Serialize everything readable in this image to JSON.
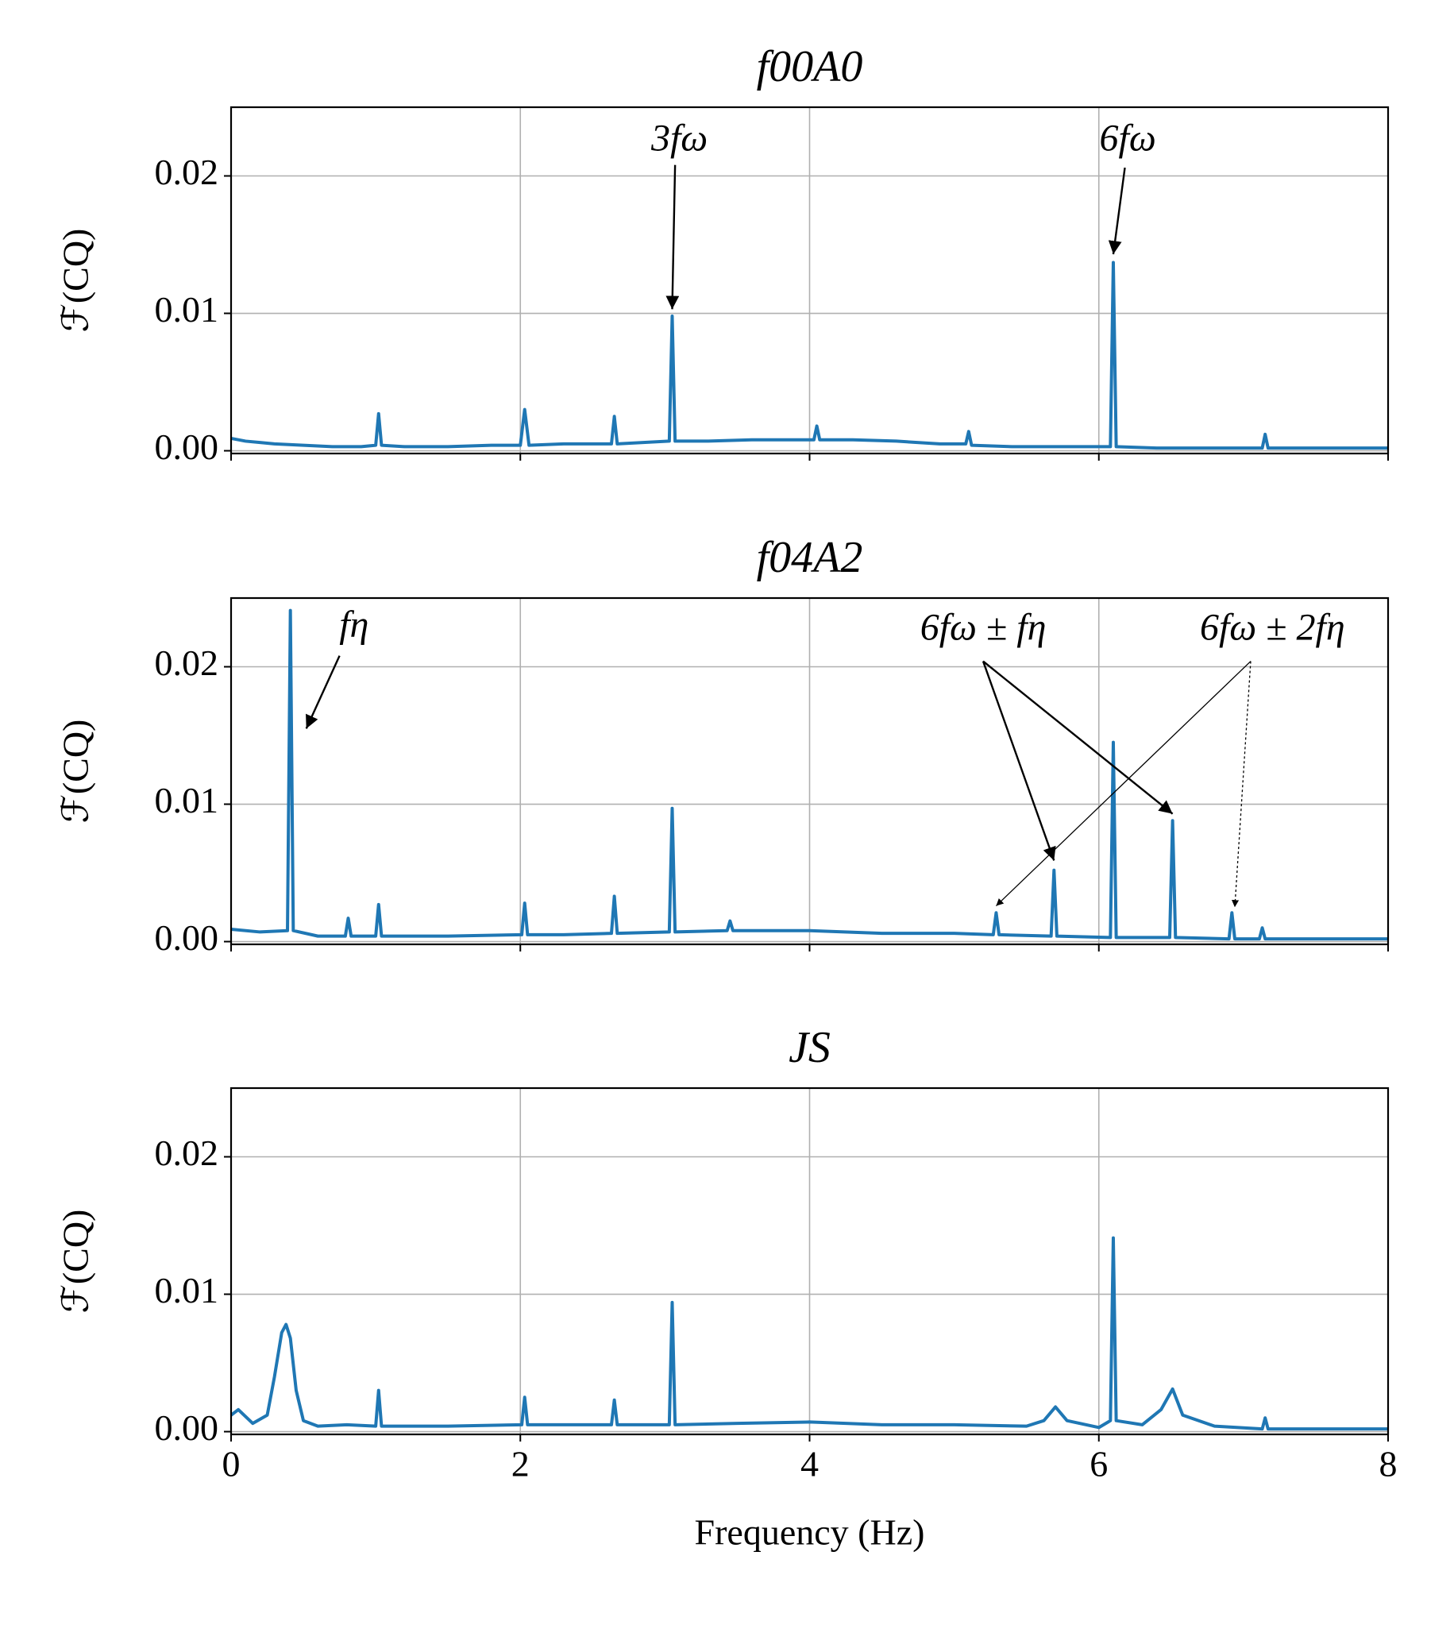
{
  "chart_data": [
    {
      "type": "line",
      "title": "f00A0",
      "ylabel": "ℱ(CQ)",
      "color": "#1f77b4",
      "grid": true,
      "show_xticklabels": false,
      "xlim": [
        0,
        8
      ],
      "xticks": [
        0,
        2,
        4,
        6,
        8
      ],
      "ylim": [
        -0.0002,
        0.025
      ],
      "yticks": [
        {
          "value": 0,
          "label": "0.00"
        },
        0.01,
        0.02
      ],
      "annotations": [
        "3fω",
        "6fω"
      ],
      "x": [
        0,
        0.1,
        0.2,
        0.3,
        0.5,
        0.7,
        0.9,
        1.0,
        1.02,
        1.04,
        1.2,
        1.5,
        1.8,
        2.0,
        2.03,
        2.06,
        2.3,
        2.5,
        2.63,
        2.65,
        2.67,
        2.85,
        3.03,
        3.05,
        3.07,
        3.3,
        3.6,
        3.9,
        4.03,
        4.05,
        4.07,
        4.3,
        4.6,
        4.9,
        5.08,
        5.1,
        5.12,
        5.4,
        5.8,
        6.08,
        6.1,
        6.12,
        6.4,
        6.8,
        7.13,
        7.15,
        7.17,
        7.5,
        8.0
      ],
      "values": [
        0.0009,
        0.0007,
        0.0006,
        0.0005,
        0.0004,
        0.0003,
        0.0003,
        0.0004,
        0.0027,
        0.0004,
        0.0003,
        0.0003,
        0.0004,
        0.0004,
        0.003,
        0.0004,
        0.0005,
        0.0005,
        0.0005,
        0.0025,
        0.0005,
        0.0006,
        0.0007,
        0.0098,
        0.0007,
        0.0007,
        0.0008,
        0.0008,
        0.0008,
        0.0018,
        0.0008,
        0.0008,
        0.0007,
        0.0005,
        0.0005,
        0.0014,
        0.0004,
        0.0003,
        0.0003,
        0.0003,
        0.0137,
        0.0003,
        0.0002,
        0.0002,
        0.0002,
        0.0012,
        0.0002,
        0.0002,
        0.0002
      ]
    },
    {
      "type": "line",
      "title": "f04A2",
      "ylabel": "ℱ(CQ)",
      "color": "#1f77b4",
      "grid": true,
      "show_xticklabels": false,
      "xlim": [
        0,
        8
      ],
      "xticks": [
        0,
        2,
        4,
        6,
        8
      ],
      "ylim": [
        -0.0002,
        0.025
      ],
      "yticks": [
        {
          "value": 0,
          "label": "0.00"
        },
        0.01,
        0.02
      ],
      "annotations": [
        "fη",
        "6fω ± fη",
        "6fω ± 2fη"
      ],
      "x": [
        0,
        0.2,
        0.39,
        0.41,
        0.43,
        0.6,
        0.79,
        0.81,
        0.83,
        1.0,
        1.02,
        1.04,
        1.5,
        2.01,
        2.03,
        2.05,
        2.3,
        2.63,
        2.65,
        2.67,
        3.03,
        3.05,
        3.07,
        3.43,
        3.45,
        3.47,
        4.0,
        4.5,
        5.0,
        5.27,
        5.29,
        5.31,
        5.67,
        5.69,
        5.71,
        6.08,
        6.1,
        6.12,
        6.49,
        6.51,
        6.53,
        6.9,
        6.92,
        6.94,
        7.11,
        7.13,
        7.15,
        7.6,
        8.0
      ],
      "values": [
        0.0009,
        0.0007,
        0.0008,
        0.0241,
        0.0008,
        0.0004,
        0.0004,
        0.0017,
        0.0004,
        0.0004,
        0.0027,
        0.0004,
        0.0004,
        0.0005,
        0.0028,
        0.0005,
        0.0005,
        0.0006,
        0.0033,
        0.0006,
        0.0007,
        0.0097,
        0.0007,
        0.0008,
        0.0015,
        0.0008,
        0.0008,
        0.0006,
        0.0006,
        0.0005,
        0.0021,
        0.0005,
        0.0004,
        0.0052,
        0.0004,
        0.0003,
        0.0145,
        0.0003,
        0.0003,
        0.0088,
        0.0003,
        0.0002,
        0.0021,
        0.0002,
        0.0002,
        0.001,
        0.0002,
        0.0002,
        0.0002
      ]
    },
    {
      "type": "line",
      "title": "JS",
      "ylabel": "ℱ(CQ)",
      "xlabel": "Frequency (Hz)",
      "color": "#1f77b4",
      "grid": true,
      "show_xticklabels": true,
      "xlim": [
        0,
        8
      ],
      "xticks": [
        0,
        2,
        4,
        6,
        8
      ],
      "ylim": [
        -0.0002,
        0.025
      ],
      "yticks": [
        {
          "value": 0,
          "label": "0.00"
        },
        0.01,
        0.02
      ],
      "x": [
        0,
        0.05,
        0.15,
        0.25,
        0.3,
        0.35,
        0.38,
        0.41,
        0.45,
        0.5,
        0.6,
        0.8,
        1.0,
        1.02,
        1.04,
        1.5,
        2.01,
        2.03,
        2.05,
        2.63,
        2.65,
        2.67,
        3.03,
        3.05,
        3.07,
        3.5,
        4.0,
        4.5,
        5.0,
        5.5,
        5.62,
        5.7,
        5.78,
        6.0,
        6.08,
        6.1,
        6.12,
        6.3,
        6.43,
        6.51,
        6.58,
        6.8,
        7.13,
        7.15,
        7.17,
        7.6,
        8.0
      ],
      "values": [
        0.0012,
        0.0016,
        0.0006,
        0.0012,
        0.004,
        0.0072,
        0.0078,
        0.0068,
        0.003,
        0.0008,
        0.0004,
        0.0005,
        0.0004,
        0.003,
        0.0004,
        0.0004,
        0.0005,
        0.0025,
        0.0005,
        0.0005,
        0.0023,
        0.0005,
        0.0005,
        0.0094,
        0.0005,
        0.0006,
        0.0007,
        0.0005,
        0.0005,
        0.0004,
        0.0008,
        0.0018,
        0.0008,
        0.0003,
        0.0008,
        0.0141,
        0.0008,
        0.0005,
        0.0016,
        0.0031,
        0.0012,
        0.0004,
        0.0002,
        0.001,
        0.0002,
        0.0002,
        0.0002
      ]
    }
  ]
}
